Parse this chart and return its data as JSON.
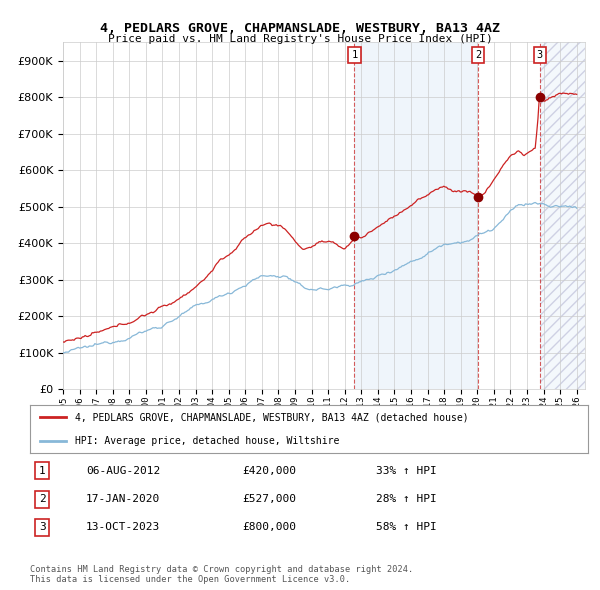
{
  "title1": "4, PEDLARS GROVE, CHAPMANSLADE, WESTBURY, BA13 4AZ",
  "title2": "Price paid vs. HM Land Registry's House Price Index (HPI)",
  "legend_red": "4, PEDLARS GROVE, CHAPMANSLADE, WESTBURY, BA13 4AZ (detached house)",
  "legend_blue": "HPI: Average price, detached house, Wiltshire",
  "transactions": [
    {
      "label": "1",
      "date_num": 2012.59,
      "price": 420000,
      "info": "06-AUG-2012",
      "amount": "£420,000",
      "pct": "33% ↑ HPI"
    },
    {
      "label": "2",
      "date_num": 2020.04,
      "price": 527000,
      "info": "17-JAN-2020",
      "amount": "£527,000",
      "pct": "28% ↑ HPI"
    },
    {
      "label": "3",
      "date_num": 2023.78,
      "price": 800000,
      "info": "13-OCT-2023",
      "amount": "£800,000",
      "pct": "58% ↑ HPI"
    }
  ],
  "copyright": "Contains HM Land Registry data © Crown copyright and database right 2024.\nThis data is licensed under the Open Government Licence v3.0.",
  "ylim": [
    0,
    950000
  ],
  "xlim_start": 1995.0,
  "xlim_end": 2026.5,
  "sale1_x": 2012.59,
  "sale2_x": 2020.04,
  "sale3_x": 2023.78,
  "sale1_price": 420000,
  "sale2_price": 527000,
  "sale3_price": 800000
}
